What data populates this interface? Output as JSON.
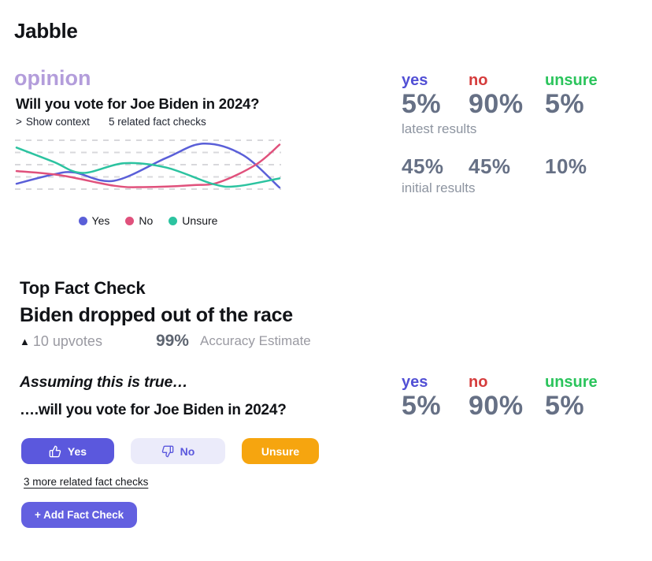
{
  "app": {
    "title": "Jabble"
  },
  "opinion": {
    "tag": "opinion",
    "question": "Will you vote for Joe Biden in 2024?",
    "show_context_chevron": ">",
    "show_context": "Show context",
    "related_count": "5 related fact checks"
  },
  "chart_data": {
    "type": "line",
    "title": "",
    "xlabel": "",
    "ylabel": "",
    "x_range": [
      0,
      100
    ],
    "y_range": [
      0,
      100
    ],
    "grid": "horizontal-dashed",
    "gridline_count": 5,
    "gridline_color": "#d8d8dc",
    "legend_position": "bottom",
    "series": [
      {
        "name": "Yes",
        "color": "#5a5fd8",
        "points": [
          [
            0,
            11
          ],
          [
            14,
            30
          ],
          [
            22,
            34
          ],
          [
            37,
            17
          ],
          [
            57,
            64
          ],
          [
            71,
            93
          ],
          [
            86,
            70
          ],
          [
            100,
            3
          ]
        ]
      },
      {
        "name": "No",
        "color": "#e0517c",
        "points": [
          [
            0,
            37
          ],
          [
            17,
            28
          ],
          [
            37,
            7
          ],
          [
            48,
            4
          ],
          [
            67,
            8
          ],
          [
            77,
            14
          ],
          [
            91,
            50
          ],
          [
            100,
            91
          ]
        ]
      },
      {
        "name": "Unsure",
        "color": "#2cc3a0",
        "points": [
          [
            0,
            85
          ],
          [
            14,
            56
          ],
          [
            25,
            33
          ],
          [
            41,
            53
          ],
          [
            57,
            44
          ],
          [
            75,
            10
          ],
          [
            84,
            6
          ],
          [
            100,
            22
          ]
        ]
      }
    ]
  },
  "results": {
    "columns": [
      {
        "label": "yes",
        "color": "#5250d5"
      },
      {
        "label": "no",
        "color": "#d53c3c"
      },
      {
        "label": "unsure",
        "color": "#2bc45c"
      }
    ],
    "latest": {
      "values": [
        "5%",
        "90%",
        "5%"
      ],
      "caption": "latest results"
    },
    "initial": {
      "values": [
        "45%",
        "45%",
        "10%"
      ],
      "caption": "initial results"
    }
  },
  "fact_check": {
    "section_title": "Top Fact Check",
    "claim": "Biden dropped out of the race",
    "upvote_symbol": "▲",
    "upvotes": "10 upvotes",
    "accuracy_value": "99%",
    "accuracy_label": "Accuracy Estimate"
  },
  "vote": {
    "assumption": "Assuming this is true…",
    "question": "….will you vote for Joe Biden in 2024?",
    "buttons": {
      "yes": "Yes",
      "no": "No",
      "unsure": "Unsure"
    },
    "results": {
      "values": [
        "5%",
        "90%",
        "5%"
      ]
    }
  },
  "footer": {
    "more_link": "3 more related fact checks",
    "add_button": "+ Add Fact Check"
  },
  "colors": {
    "accent_purple": "#5b58dd",
    "accent_purple_light": "#ebebfa",
    "accent_orange": "#f6a50f",
    "add_button_purple": "#6360e0",
    "opinion_purple": "#b39ddb"
  }
}
